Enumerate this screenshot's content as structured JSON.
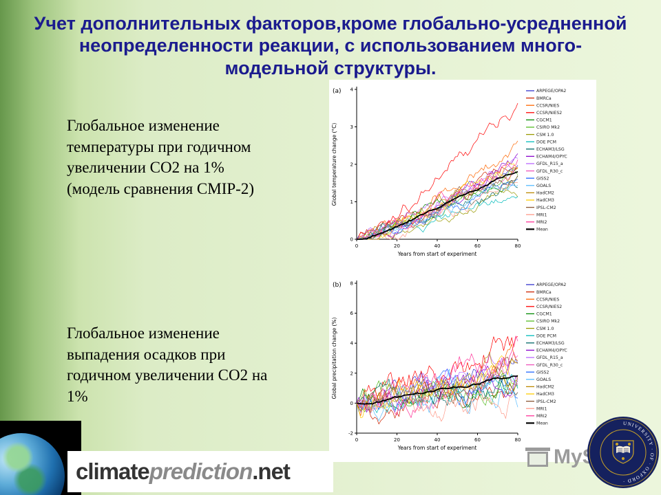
{
  "slide": {
    "title_lines": [
      "Учет дополнительных факторов,кроме глобально-усредненной",
      "неопределенности реакции, с использованием много-",
      "модельной структуры."
    ],
    "text_block_1_lines": [
      "Глобальное изменение",
      "температуры при годичном",
      "увеличении CO2 на  1%",
      "(модель сравнения CMIP-2)"
    ],
    "text_block_2_lines": [
      "Глобальное изменение",
      "выпадения осадков при",
      "годичном увеличении CO2 на",
      "1%"
    ]
  },
  "footer": {
    "logo_part_climate": "climate",
    "logo_part_prediction": "prediction",
    "logo_part_net": ".net",
    "watermark_text": "MySl",
    "crest_ring_text": "UNIVERSITY · OF · OXFORD ·"
  },
  "colors": {
    "title_text": "#1b1b8e",
    "background": "#dcecc6",
    "left_band": "#66974b",
    "figure_background": "#ffffff",
    "crest_navy": "#15215e",
    "crest_gold": "#c9a227"
  },
  "chart_data": [
    {
      "type": "line",
      "panel_label": "(a)",
      "xlabel": "Years from start of experiment",
      "ylabel": "Global temperature change (°C)",
      "xlim": [
        0,
        80
      ],
      "ylim": [
        0,
        4
      ],
      "xticks": [
        0,
        20,
        40,
        60,
        80
      ],
      "yticks": [
        0,
        1,
        2,
        3,
        4
      ],
      "grid": false,
      "legend_position": "right",
      "description": "20 coupled-model runs of global temperature change under 1%/yr CO2 increase (CMIP-2); lines start near 0 and rise; most reach 1.3-2.6 °C by year 80, CCSR/NIES2 reaches ~3.9 °C, multi-model Mean ~2.0 °C",
      "series": [
        {
          "name": "ARPEGE/OPA2",
          "color": "#3333cc",
          "end": 2.1,
          "vol": 0.22
        },
        {
          "name": "BMRCa",
          "color": "#cc2200",
          "end": 2.3,
          "vol": 0.25
        },
        {
          "name": "CCSR/NIES",
          "color": "#ff6600",
          "end": 2.6,
          "vol": 0.25
        },
        {
          "name": "CCSR/NIES2",
          "color": "#ff0000",
          "end": 3.9,
          "vol": 0.28
        },
        {
          "name": "CGCM1",
          "color": "#008800",
          "end": 1.9,
          "vol": 0.22
        },
        {
          "name": "CSIRO Mk2",
          "color": "#55bb22",
          "end": 1.9,
          "vol": 0.22
        },
        {
          "name": "CSM 1.0",
          "color": "#999900",
          "end": 1.3,
          "vol": 0.2
        },
        {
          "name": "DOE PCM",
          "color": "#00bbbb",
          "end": 1.4,
          "vol": 0.2
        },
        {
          "name": "ECHAM3/LSG",
          "color": "#006666",
          "end": 1.7,
          "vol": 0.25
        },
        {
          "name": "ECHAM4/OPYC",
          "color": "#8800cc",
          "end": 2.2,
          "vol": 0.22
        },
        {
          "name": "GFDL_R15_a",
          "color": "#bb66ff",
          "end": 2.2,
          "vol": 0.22
        },
        {
          "name": "GFDL_R30_c",
          "color": "#ee55bb",
          "end": 2.0,
          "vol": 0.22
        },
        {
          "name": "GISS2",
          "color": "#2266ff",
          "end": 1.5,
          "vol": 0.2
        },
        {
          "name": "GOALS",
          "color": "#55bbff",
          "end": 1.6,
          "vol": 0.2
        },
        {
          "name": "HadCM2",
          "color": "#bb8800",
          "end": 2.0,
          "vol": 0.25
        },
        {
          "name": "HadCM3",
          "color": "#ffcc00",
          "end": 2.2,
          "vol": 0.25
        },
        {
          "name": "IPSL-CM2",
          "color": "#885533",
          "end": 1.9,
          "vol": 0.22
        },
        {
          "name": "MRI1",
          "color": "#ff9988",
          "end": 1.5,
          "vol": 0.25
        },
        {
          "name": "MRI2",
          "color": "#ff3399",
          "end": 2.4,
          "vol": 0.25
        },
        {
          "name": "Mean",
          "color": "#000000",
          "end": 2.0,
          "vol": 0.05
        }
      ]
    },
    {
      "type": "line",
      "panel_label": "(b)",
      "xlabel": "Years from start of experiment",
      "ylabel": "Global precipitation change (%)",
      "xlim": [
        0,
        80
      ],
      "ylim": [
        -2,
        8
      ],
      "xticks": [
        0,
        20,
        40,
        60,
        80
      ],
      "yticks": [
        -2,
        0,
        2,
        4,
        6,
        8
      ],
      "grid": false,
      "legend_position": "right",
      "description": "Same 20 model runs for global precipitation change (%); very noisy lines fluctuating between about -2% and +6%, drifting upward to roughly 0.5-5% by year 80, Mean ~2%",
      "series": [
        {
          "name": "ARPEGE/OPA2",
          "color": "#3333cc",
          "end": 2.5,
          "vol": 1.0
        },
        {
          "name": "BMRCa",
          "color": "#cc2200",
          "end": 1.5,
          "vol": 1.2
        },
        {
          "name": "CCSR/NIES",
          "color": "#ff6600",
          "end": 3.5,
          "vol": 1.3
        },
        {
          "name": "CCSR/NIES2",
          "color": "#ff0000",
          "end": 5.0,
          "vol": 1.4
        },
        {
          "name": "CGCM1",
          "color": "#008800",
          "end": 1.2,
          "vol": 1.0
        },
        {
          "name": "CSIRO Mk2",
          "color": "#55bb22",
          "end": 2.0,
          "vol": 1.1
        },
        {
          "name": "CSM 1.0",
          "color": "#999900",
          "end": 1.5,
          "vol": 0.9
        },
        {
          "name": "DOE PCM",
          "color": "#00bbbb",
          "end": 1.2,
          "vol": 0.9
        },
        {
          "name": "ECHAM3/LSG",
          "color": "#006666",
          "end": 1.0,
          "vol": 1.1
        },
        {
          "name": "ECHAM4/OPYC",
          "color": "#8800cc",
          "end": 2.5,
          "vol": 1.1
        },
        {
          "name": "GFDL_R15_a",
          "color": "#bb66ff",
          "end": 3.0,
          "vol": 1.2
        },
        {
          "name": "GFDL_R30_c",
          "color": "#ee55bb",
          "end": 2.5,
          "vol": 1.1
        },
        {
          "name": "GISS2",
          "color": "#2266ff",
          "end": 1.5,
          "vol": 1.0
        },
        {
          "name": "GOALS",
          "color": "#55bbff",
          "end": 0.8,
          "vol": 1.3
        },
        {
          "name": "HadCM2",
          "color": "#bb8800",
          "end": 2.5,
          "vol": 1.1
        },
        {
          "name": "HadCM3",
          "color": "#ffcc00",
          "end": 3.0,
          "vol": 1.2
        },
        {
          "name": "IPSL-CM2",
          "color": "#885533",
          "end": 2.0,
          "vol": 1.0
        },
        {
          "name": "MRI1",
          "color": "#ff9988",
          "end": 0.5,
          "vol": 1.2
        },
        {
          "name": "MRI2",
          "color": "#ff3399",
          "end": 4.0,
          "vol": 1.3
        },
        {
          "name": "Mean",
          "color": "#000000",
          "end": 2.0,
          "vol": 0.12
        }
      ]
    }
  ]
}
